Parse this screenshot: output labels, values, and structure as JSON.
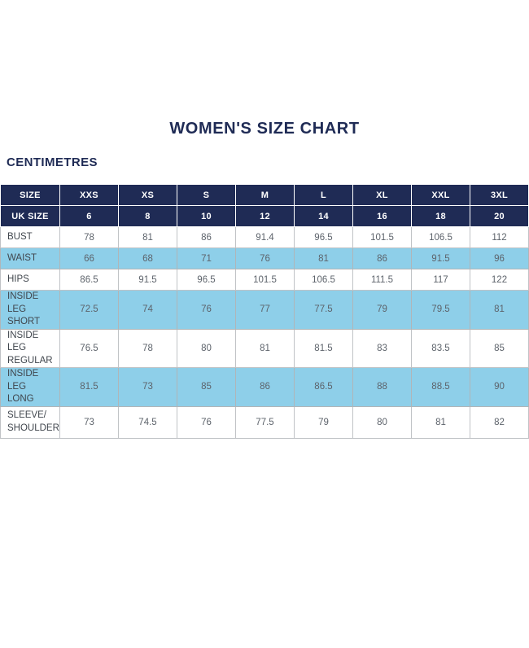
{
  "page": {
    "title": "WOMEN'S SIZE CHART",
    "units_label": "CENTIMETRES"
  },
  "colors": {
    "navy": "#1f2b55",
    "light_blue": "#8ecfe9",
    "white": "#ffffff",
    "value_text": "#5d636b",
    "label_text": "#40464d",
    "grid_line": "#c0c3c6"
  },
  "chart_data": {
    "type": "table",
    "title": "WOMEN'S SIZE CHART",
    "units": "CENTIMETRES",
    "columns": [
      "SIZE",
      "XXS",
      "XS",
      "S",
      "M",
      "L",
      "XL",
      "XXL",
      "3XL"
    ],
    "rows": [
      {
        "label": "UK SIZE",
        "values": [
          "6",
          "8",
          "10",
          "12",
          "14",
          "16",
          "18",
          "20"
        ],
        "style": "navy",
        "double": false
      },
      {
        "label": "BUST",
        "values": [
          "78",
          "81",
          "86",
          "91.4",
          "96.5",
          "101.5",
          "106.5",
          "112"
        ],
        "style": "white",
        "double": false
      },
      {
        "label": "WAIST",
        "values": [
          "66",
          "68",
          "71",
          "76",
          "81",
          "86",
          "91.5",
          "96"
        ],
        "style": "blue",
        "double": false
      },
      {
        "label": "HIPS",
        "values": [
          "86.5",
          "91.5",
          "96.5",
          "101.5",
          "106.5",
          "111.5",
          "117",
          "122"
        ],
        "style": "white",
        "double": false
      },
      {
        "label": "INSIDE LEG\nSHORT",
        "values": [
          "72.5",
          "74",
          "76",
          "77",
          "77.5",
          "79",
          "79.5",
          "81"
        ],
        "style": "blue",
        "double": true
      },
      {
        "label": "INSIDE LEG\nREGULAR",
        "values": [
          "76.5",
          "78",
          "80",
          "81",
          "81.5",
          "83",
          "83.5",
          "85"
        ],
        "style": "white",
        "double": true
      },
      {
        "label": "INSIDE LEG\nLONG",
        "values": [
          "81.5",
          "73",
          "85",
          "86",
          "86.5",
          "88",
          "88.5",
          "90"
        ],
        "style": "blue",
        "double": true
      },
      {
        "label": "SLEEVE/\nSHOULDER",
        "values": [
          "73",
          "74.5",
          "76",
          "77.5",
          "79",
          "80",
          "81",
          "82"
        ],
        "style": "white",
        "double": true
      }
    ]
  }
}
